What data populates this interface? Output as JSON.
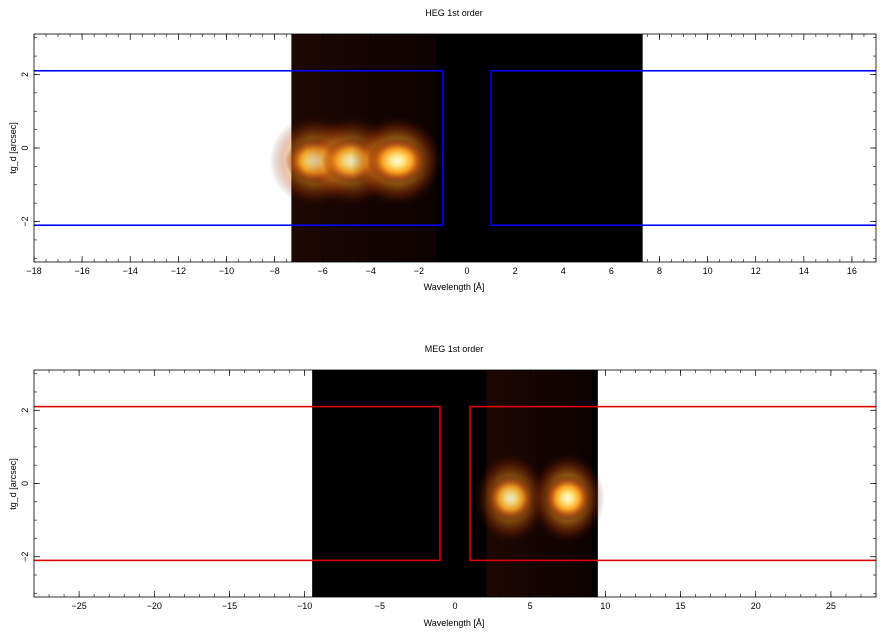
{
  "chart_data": [
    {
      "type": "heatmap",
      "title": "HEG 1st order",
      "xlabel": "Wavelength [Å]",
      "ylabel": "tg_d [arcsec]",
      "xlim": [
        -18,
        17
      ],
      "ylim": [
        -3.1,
        3.1
      ],
      "xticks": [
        -18,
        -16,
        -14,
        -12,
        -10,
        -8,
        -6,
        -4,
        -2,
        0,
        2,
        4,
        6,
        8,
        10,
        12,
        14,
        16
      ],
      "yticks": [
        -2,
        0,
        2
      ],
      "image_extent": {
        "x": [
          -7.3,
          7.3
        ],
        "y": [
          -3.1,
          3.1
        ]
      },
      "emission": [
        {
          "x": -6.3,
          "y": -0.35,
          "intensity": 0.9
        },
        {
          "x": -4.8,
          "y": -0.35,
          "intensity": 0.85
        },
        {
          "x": -2.9,
          "y": -0.35,
          "intensity": 1.0
        }
      ],
      "regions": [
        {
          "x": [
            -20,
            -1.0
          ],
          "y": [
            -2.1,
            2.1
          ]
        },
        {
          "x": [
            1.0,
            20
          ],
          "y": [
            -2.1,
            2.1
          ]
        }
      ],
      "region_color": "#0000ff"
    },
    {
      "type": "heatmap",
      "title": "MEG 1st order",
      "xlabel": "Wavelength [Å]",
      "ylabel": "tg_d [arcsec]",
      "xlim": [
        -28,
        28
      ],
      "ylim": [
        -3.1,
        3.1
      ],
      "xticks": [
        -25,
        -20,
        -15,
        -10,
        -5,
        0,
        5,
        10,
        15,
        20,
        25
      ],
      "yticks": [
        -2,
        0,
        2
      ],
      "image_extent": {
        "x": [
          -9.5,
          9.5
        ],
        "y": [
          -3.1,
          3.1
        ]
      },
      "emission": [
        {
          "x": 3.7,
          "y": -0.4,
          "intensity": 0.85
        },
        {
          "x": 7.5,
          "y": -0.4,
          "intensity": 1.0
        }
      ],
      "regions": [
        {
          "x": [
            -30,
            -1.0
          ],
          "y": [
            -2.1,
            2.1
          ]
        },
        {
          "x": [
            1.0,
            30
          ],
          "y": [
            -2.1,
            2.1
          ]
        }
      ],
      "region_color": "#e00000"
    }
  ]
}
